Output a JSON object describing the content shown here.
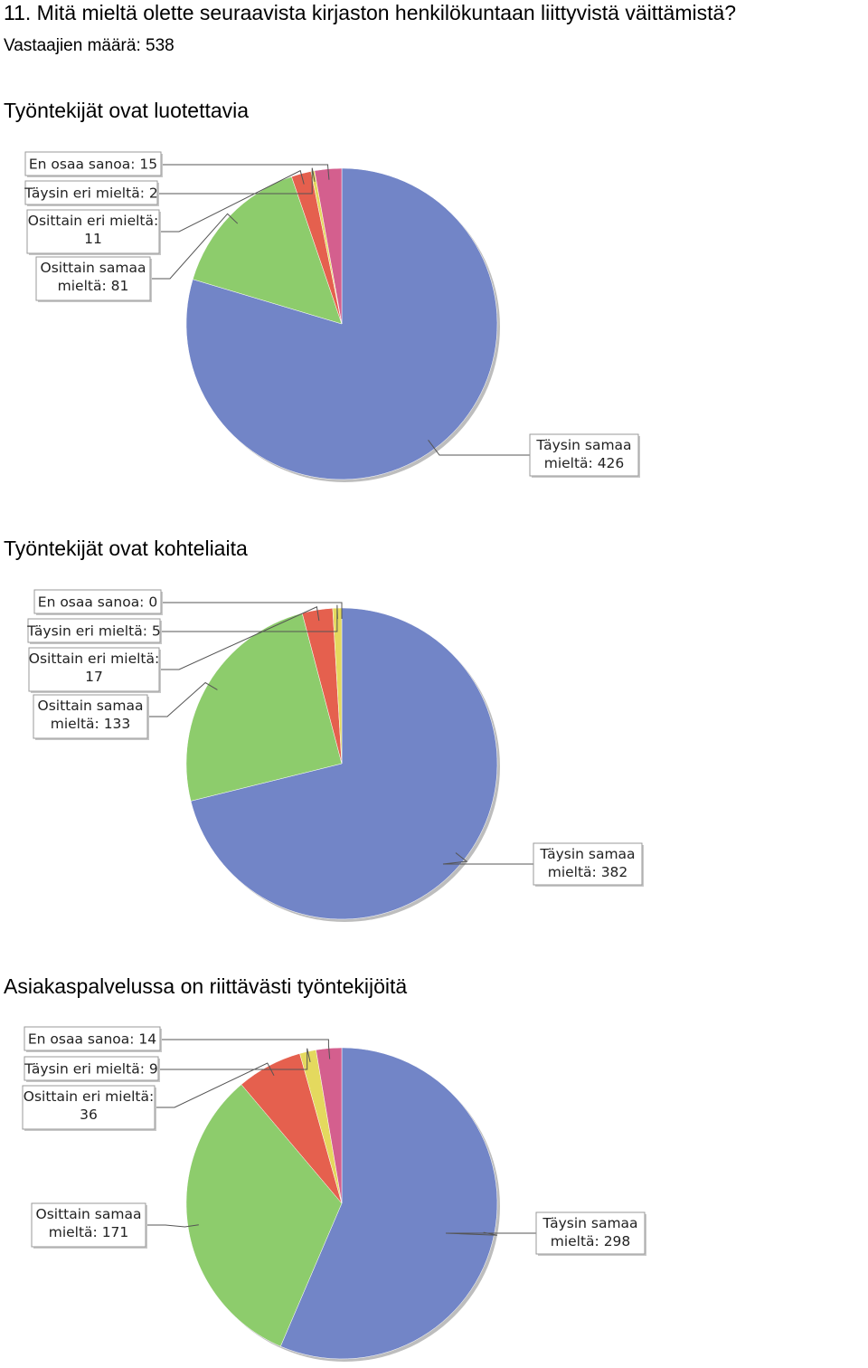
{
  "question": "11. Mitä mieltä olette seuraavista kirjaston henkilökuntaan liittyvistä väittämistä?",
  "respondents": "Vastaajien määrä: 538",
  "colors": {
    "taysin_samaa": "#7285c7",
    "osittain_samaa": "#8dcc6c",
    "osittain_eri": "#e5604e",
    "taysin_eri": "#e4d95e",
    "en_osaa": "#d45f8e"
  },
  "chart_data": [
    {
      "type": "pie",
      "title": "Työntekijät ovat luotettavia",
      "slices": [
        {
          "key": "taysin_samaa",
          "label": "Täysin samaa mieltä: 426",
          "value": 426
        },
        {
          "key": "osittain_samaa",
          "label": "Osittain samaa mieltä: 81",
          "value": 81
        },
        {
          "key": "osittain_eri",
          "label": "Osittain eri mieltä: 11",
          "value": 11
        },
        {
          "key": "taysin_eri",
          "label": "Täysin eri mieltä: 2",
          "value": 2
        },
        {
          "key": "en_osaa",
          "label": "En osaa sanoa: 15",
          "value": 15
        }
      ],
      "callouts": [
        {
          "lines": [
            "En osaa sanoa: 15"
          ]
        },
        {
          "lines": [
            "Täysin eri mieltä: 2"
          ]
        },
        {
          "lines": [
            "Osittain eri mieltä:",
            "11"
          ]
        },
        {
          "lines": [
            "Osittain samaa",
            "mieltä: 81"
          ]
        },
        {
          "lines": [
            "Täysin samaa",
            "mieltä: 426"
          ]
        }
      ]
    },
    {
      "type": "pie",
      "title": "Työntekijät ovat kohteliaita",
      "slices": [
        {
          "key": "taysin_samaa",
          "label": "Täysin samaa mieltä: 382",
          "value": 382
        },
        {
          "key": "osittain_samaa",
          "label": "Osittain samaa mieltä: 133",
          "value": 133
        },
        {
          "key": "osittain_eri",
          "label": "Osittain eri mieltä: 17",
          "value": 17
        },
        {
          "key": "taysin_eri",
          "label": "Täysin eri mieltä: 5",
          "value": 5
        },
        {
          "key": "en_osaa",
          "label": "En osaa sanoa: 0",
          "value": 0
        }
      ],
      "callouts": [
        {
          "lines": [
            "En osaa sanoa: 0"
          ]
        },
        {
          "lines": [
            "Täysin eri mieltä: 5"
          ]
        },
        {
          "lines": [
            "Osittain eri mieltä:",
            "17"
          ]
        },
        {
          "lines": [
            "Osittain samaa",
            "mieltä: 133"
          ]
        },
        {
          "lines": [
            "Täysin samaa",
            "mieltä: 382"
          ]
        }
      ]
    },
    {
      "type": "pie",
      "title": "Asiakaspalvelussa on riittävästi työntekijöitä",
      "slices": [
        {
          "key": "taysin_samaa",
          "label": "Täysin samaa mieltä: 298",
          "value": 298
        },
        {
          "key": "osittain_samaa",
          "label": "Osittain samaa mieltä: 171",
          "value": 171
        },
        {
          "key": "osittain_eri",
          "label": "Osittain eri mieltä: 36",
          "value": 36
        },
        {
          "key": "taysin_eri",
          "label": "Täysin eri mieltä: 9",
          "value": 9
        },
        {
          "key": "en_osaa",
          "label": "En osaa sanoa: 14",
          "value": 14
        }
      ],
      "callouts": [
        {
          "lines": [
            "En osaa sanoa: 14"
          ]
        },
        {
          "lines": [
            "Täysin eri mieltä: 9"
          ]
        },
        {
          "lines": [
            "Osittain eri mieltä:",
            "36"
          ]
        },
        {
          "lines": [
            "Osittain samaa",
            "mieltä: 171"
          ]
        },
        {
          "lines": [
            "Täysin samaa",
            "mieltä: 298"
          ]
        }
      ]
    }
  ]
}
